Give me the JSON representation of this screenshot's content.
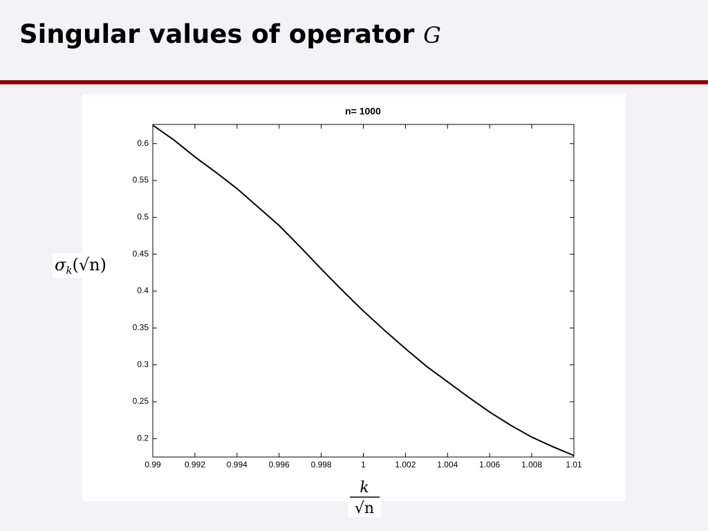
{
  "slide": {
    "title": "Singular values of operator",
    "title_symbol": "G"
  },
  "chart_data": {
    "type": "line",
    "title": "n= 1000",
    "y_label": {
      "symbol": "σ",
      "subscript": "k",
      "argument": "(√n)"
    },
    "x_label": {
      "numerator": "k",
      "denominator": "√n"
    },
    "x": [
      0.99,
      0.991,
      0.992,
      0.993,
      0.994,
      0.995,
      0.996,
      0.997,
      0.998,
      0.999,
      1,
      1.001,
      1.002,
      1.003,
      1.004,
      1.005,
      1.006,
      1.007,
      1.008,
      1.009,
      1.01
    ],
    "series": [
      {
        "color": "#000000",
        "values": [
          0.625,
          0.605,
          0.582,
          0.561,
          0.539,
          0.514,
          0.489,
          0.46,
          0.43,
          0.401,
          0.373,
          0.347,
          0.322,
          0.298,
          0.277,
          0.256,
          0.236,
          0.218,
          0.202,
          0.189,
          0.177
        ]
      }
    ],
    "xlim": [
      0.99,
      1.01
    ],
    "xticks": [
      0.99,
      0.992,
      0.994,
      0.996,
      0.998,
      1,
      1.002,
      1.004,
      1.006,
      1.008,
      1.01
    ],
    "ylim": [
      0.175,
      0.626
    ],
    "yticks": [
      0.2,
      0.25,
      0.3,
      0.35,
      0.4,
      0.45,
      0.5,
      0.55,
      0.6
    ],
    "grid": false
  }
}
